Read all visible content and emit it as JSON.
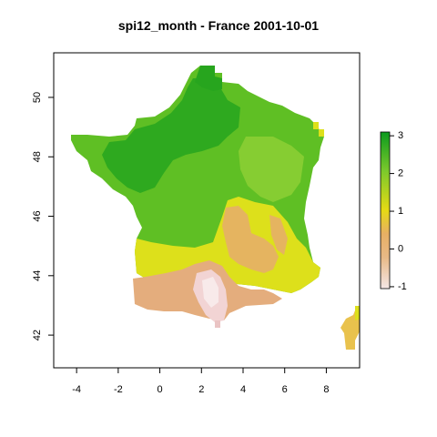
{
  "title": "spi12_month - France 2001-10-01",
  "map": {
    "x_ticks": [
      -4,
      -2,
      0,
      2,
      4,
      6,
      8
    ],
    "y_ticks": [
      42,
      44,
      46,
      48,
      50
    ],
    "xlim": [
      -5.1,
      9.6
    ],
    "ylim": [
      40.9,
      51.5
    ],
    "colors": {
      "high": "#22a31b",
      "mid_high": "#7cc92c",
      "mid": "#dde01b",
      "low": "#e7b064",
      "lowest": "#f2dcdc"
    }
  },
  "legend": {
    "ticks": [
      3,
      2,
      1,
      0,
      -1
    ],
    "range": [
      -1.05,
      3.1
    ]
  }
}
